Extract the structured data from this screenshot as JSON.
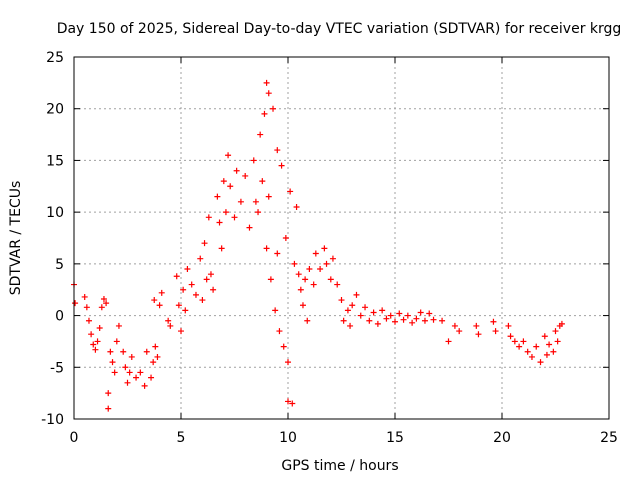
{
  "chart_data": {
    "type": "scatter",
    "title": "Day 150 of 2025, Sidereal Day-to-day VTEC variation (SDTVAR) for receiver krgg",
    "xlabel": "GPS time / hours",
    "ylabel": "SDTVAR / TECUs",
    "xlim": [
      0,
      25
    ],
    "ylim": [
      -10,
      25
    ],
    "x_ticks": [
      "0",
      "5",
      "10",
      "15",
      "20",
      "25"
    ],
    "y_ticks": [
      "-10",
      "-5",
      "0",
      "5",
      "10",
      "15",
      "20",
      "25"
    ],
    "grid": true,
    "marker": "+",
    "colors": {
      "series": "#ff0000",
      "grid": "#a0a0a0",
      "axes": "#000000"
    },
    "series": [
      {
        "name": "SDTVAR",
        "points": [
          [
            0.0,
            3.0
          ],
          [
            0.05,
            1.2
          ],
          [
            0.5,
            1.8
          ],
          [
            0.6,
            0.8
          ],
          [
            0.7,
            -0.5
          ],
          [
            0.8,
            -1.8
          ],
          [
            0.9,
            -2.8
          ],
          [
            1.0,
            -3.3
          ],
          [
            1.1,
            -2.5
          ],
          [
            1.2,
            -1.2
          ],
          [
            1.3,
            0.8
          ],
          [
            1.4,
            1.6
          ],
          [
            1.5,
            1.2
          ],
          [
            1.6,
            -7.5
          ],
          [
            1.6,
            -9.0
          ],
          [
            1.7,
            -3.5
          ],
          [
            1.8,
            -4.5
          ],
          [
            1.9,
            -5.5
          ],
          [
            2.0,
            -2.5
          ],
          [
            2.1,
            -1.0
          ],
          [
            2.3,
            -3.5
          ],
          [
            2.4,
            -5.0
          ],
          [
            2.5,
            -6.5
          ],
          [
            2.6,
            -5.5
          ],
          [
            2.7,
            -4.0
          ],
          [
            2.9,
            -6.0
          ],
          [
            3.1,
            -5.5
          ],
          [
            3.3,
            -6.8
          ],
          [
            3.4,
            -3.5
          ],
          [
            3.6,
            -6.0
          ],
          [
            3.7,
            -4.5
          ],
          [
            3.75,
            1.5
          ],
          [
            3.8,
            -3.0
          ],
          [
            3.9,
            -4.0
          ],
          [
            4.0,
            1.0
          ],
          [
            4.1,
            2.2
          ],
          [
            4.4,
            -0.5
          ],
          [
            4.5,
            -1.0
          ],
          [
            4.8,
            3.8
          ],
          [
            4.9,
            1.0
          ],
          [
            5.0,
            -1.5
          ],
          [
            5.1,
            2.5
          ],
          [
            5.2,
            0.5
          ],
          [
            5.3,
            4.5
          ],
          [
            5.5,
            3.0
          ],
          [
            5.7,
            2.0
          ],
          [
            5.9,
            5.5
          ],
          [
            6.0,
            1.5
          ],
          [
            6.1,
            7.0
          ],
          [
            6.2,
            3.5
          ],
          [
            6.3,
            9.5
          ],
          [
            6.4,
            4.0
          ],
          [
            6.5,
            2.5
          ],
          [
            6.7,
            11.5
          ],
          [
            6.8,
            9.0
          ],
          [
            6.9,
            6.5
          ],
          [
            7.0,
            13.0
          ],
          [
            7.1,
            10.0
          ],
          [
            7.2,
            15.5
          ],
          [
            7.3,
            12.5
          ],
          [
            7.5,
            9.5
          ],
          [
            7.6,
            14.0
          ],
          [
            7.8,
            11.0
          ],
          [
            8.0,
            13.5
          ],
          [
            8.2,
            8.5
          ],
          [
            8.4,
            15.0
          ],
          [
            8.5,
            11.0
          ],
          [
            8.6,
            10.0
          ],
          [
            8.7,
            17.5
          ],
          [
            8.8,
            13.0
          ],
          [
            8.9,
            19.5
          ],
          [
            9.0,
            22.5
          ],
          [
            9.0,
            6.5
          ],
          [
            9.1,
            21.5
          ],
          [
            9.1,
            11.5
          ],
          [
            9.2,
            3.5
          ],
          [
            9.3,
            20.0
          ],
          [
            9.4,
            0.5
          ],
          [
            9.5,
            16.0
          ],
          [
            9.5,
            6.0
          ],
          [
            9.6,
            -1.5
          ],
          [
            9.7,
            14.5
          ],
          [
            9.8,
            -3.0
          ],
          [
            9.9,
            7.5
          ],
          [
            10.0,
            -4.5
          ],
          [
            10.0,
            -8.3
          ],
          [
            10.1,
            12.0
          ],
          [
            10.2,
            -8.5
          ],
          [
            10.3,
            5.0
          ],
          [
            10.4,
            10.5
          ],
          [
            10.5,
            4.0
          ],
          [
            10.6,
            2.5
          ],
          [
            10.7,
            1.0
          ],
          [
            10.8,
            3.5
          ],
          [
            10.9,
            -0.5
          ],
          [
            11.0,
            4.5
          ],
          [
            11.2,
            3.0
          ],
          [
            11.3,
            6.0
          ],
          [
            11.5,
            4.5
          ],
          [
            11.7,
            6.5
          ],
          [
            11.8,
            5.0
          ],
          [
            12.0,
            3.5
          ],
          [
            12.1,
            5.5
          ],
          [
            12.3,
            3.0
          ],
          [
            12.5,
            1.5
          ],
          [
            12.6,
            -0.5
          ],
          [
            12.8,
            0.5
          ],
          [
            12.9,
            -1.0
          ],
          [
            13.0,
            1.0
          ],
          [
            13.2,
            2.0
          ],
          [
            13.4,
            0.0
          ],
          [
            13.6,
            0.8
          ],
          [
            13.8,
            -0.5
          ],
          [
            14.0,
            0.3
          ],
          [
            14.2,
            -0.8
          ],
          [
            14.4,
            0.5
          ],
          [
            14.6,
            -0.3
          ],
          [
            14.8,
            0.0
          ],
          [
            15.0,
            -0.6
          ],
          [
            15.2,
            0.2
          ],
          [
            15.4,
            -0.4
          ],
          [
            15.6,
            0.0
          ],
          [
            15.8,
            -0.7
          ],
          [
            16.0,
            -0.3
          ],
          [
            16.2,
            0.3
          ],
          [
            16.4,
            -0.5
          ],
          [
            16.6,
            0.2
          ],
          [
            16.8,
            -0.4
          ],
          [
            17.2,
            -0.5
          ],
          [
            17.5,
            -2.5
          ],
          [
            17.8,
            -1.0
          ],
          [
            18.0,
            -1.5
          ],
          [
            18.8,
            -1.0
          ],
          [
            18.9,
            -1.8
          ],
          [
            19.6,
            -0.6
          ],
          [
            19.7,
            -1.5
          ],
          [
            20.3,
            -1.0
          ],
          [
            20.4,
            -2.0
          ],
          [
            20.6,
            -2.5
          ],
          [
            20.8,
            -3.0
          ],
          [
            21.0,
            -2.5
          ],
          [
            21.2,
            -3.5
          ],
          [
            21.4,
            -4.0
          ],
          [
            21.6,
            -3.0
          ],
          [
            21.8,
            -4.5
          ],
          [
            22.0,
            -2.0
          ],
          [
            22.1,
            -3.8
          ],
          [
            22.2,
            -2.8
          ],
          [
            22.4,
            -3.5
          ],
          [
            22.5,
            -1.5
          ],
          [
            22.6,
            -2.5
          ],
          [
            22.7,
            -1.0
          ],
          [
            22.8,
            -0.8
          ]
        ]
      }
    ]
  }
}
